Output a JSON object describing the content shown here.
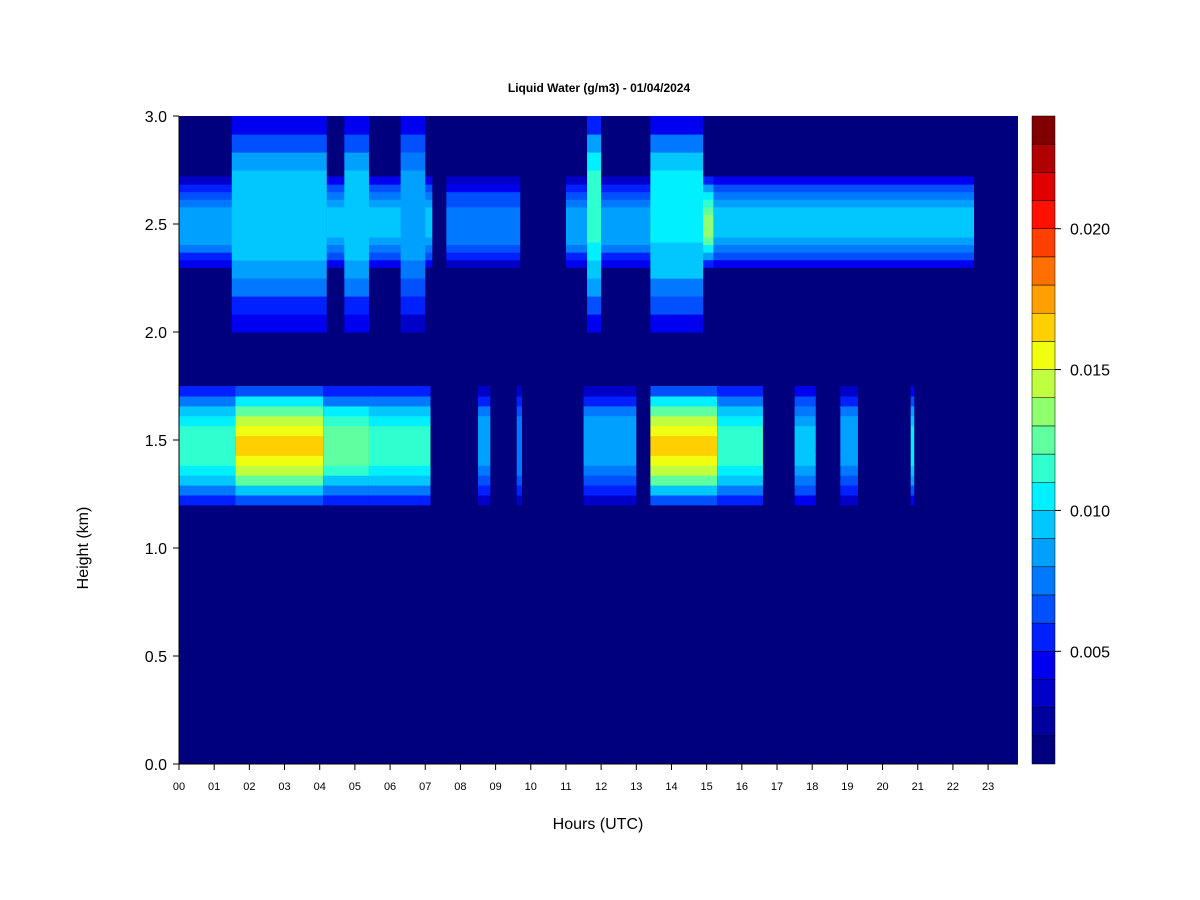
{
  "chart_data": {
    "type": "heatmap",
    "title": "Liquid Water (g/m3) - 01/04/2024",
    "xlabel": "Hours (UTC)",
    "ylabel": "Height (km)",
    "xlim": [
      0,
      23.85
    ],
    "ylim": [
      0,
      3.0
    ],
    "x_ticks": [
      "00",
      "01",
      "02",
      "03",
      "04",
      "05",
      "06",
      "07",
      "08",
      "09",
      "10",
      "11",
      "12",
      "13",
      "14",
      "15",
      "16",
      "17",
      "18",
      "19",
      "20",
      "21",
      "22",
      "23"
    ],
    "y_ticks": [
      "0.0",
      "0.5",
      "1.0",
      "1.5",
      "2.0",
      "2.5",
      "3.0"
    ],
    "colorbar": {
      "range": [
        0.001,
        0.024
      ],
      "ticks": [
        "0.005",
        "0.010",
        "0.015",
        "0.020"
      ],
      "colors": [
        "#00007f",
        "#00009f",
        "#0000c8",
        "#0000f0",
        "#0020ff",
        "#0050ff",
        "#0078ff",
        "#00a0ff",
        "#00c8ff",
        "#00f0ff",
        "#30ffd0",
        "#60ffa0",
        "#90ff70",
        "#c0ff40",
        "#f0ff10",
        "#ffd000",
        "#ffa000",
        "#ff7000",
        "#ff4000",
        "#ff1000",
        "#e00000",
        "#b00000",
        "#800000"
      ]
    },
    "background_value": 0.001,
    "layers": [
      {
        "y_range": [
          1.2,
          1.75
        ],
        "peak_height": 1.48,
        "segments": [
          {
            "start": 0.0,
            "end": 1.6,
            "value": 0.012
          },
          {
            "start": 1.6,
            "end": 4.1,
            "value": 0.0165
          },
          {
            "start": 4.1,
            "end": 5.4,
            "value": 0.013
          },
          {
            "start": 5.4,
            "end": 7.15,
            "value": 0.012
          },
          {
            "start": 8.5,
            "end": 8.85,
            "value": 0.009
          },
          {
            "start": 9.6,
            "end": 9.75,
            "value": 0.008
          },
          {
            "start": 11.5,
            "end": 13.0,
            "value": 0.009
          },
          {
            "start": 13.4,
            "end": 15.3,
            "value": 0.0165
          },
          {
            "start": 15.3,
            "end": 16.6,
            "value": 0.012
          },
          {
            "start": 17.5,
            "end": 18.1,
            "value": 0.01
          },
          {
            "start": 18.8,
            "end": 19.3,
            "value": 0.009
          },
          {
            "start": 20.8,
            "end": 20.9,
            "value": 0.011
          }
        ]
      },
      {
        "y_range": [
          2.3,
          2.72
        ],
        "peak_height": 2.5,
        "segments": [
          {
            "start": 0.0,
            "end": 1.6,
            "value": 0.009
          },
          {
            "start": 1.6,
            "end": 4.2,
            "value": 0.012
          },
          {
            "start": 4.2,
            "end": 7.2,
            "value": 0.01
          },
          {
            "start": 7.6,
            "end": 9.7,
            "value": 0.008
          },
          {
            "start": 11.0,
            "end": 13.4,
            "value": 0.009
          },
          {
            "start": 13.4,
            "end": 15.2,
            "value": 0.0135
          },
          {
            "start": 15.2,
            "end": 22.6,
            "value": 0.01
          }
        ]
      },
      {
        "y_range": [
          2.0,
          3.0
        ],
        "peak_height": 2.6,
        "segments": [
          {
            "start": 1.5,
            "end": 4.2,
            "value": 0.01
          },
          {
            "start": 4.7,
            "end": 5.4,
            "value": 0.01
          },
          {
            "start": 6.3,
            "end": 7.0,
            "value": 0.009
          },
          {
            "start": 11.6,
            "end": 12.0,
            "value": 0.012
          },
          {
            "start": 13.4,
            "end": 14.9,
            "value": 0.011
          }
        ]
      }
    ]
  }
}
